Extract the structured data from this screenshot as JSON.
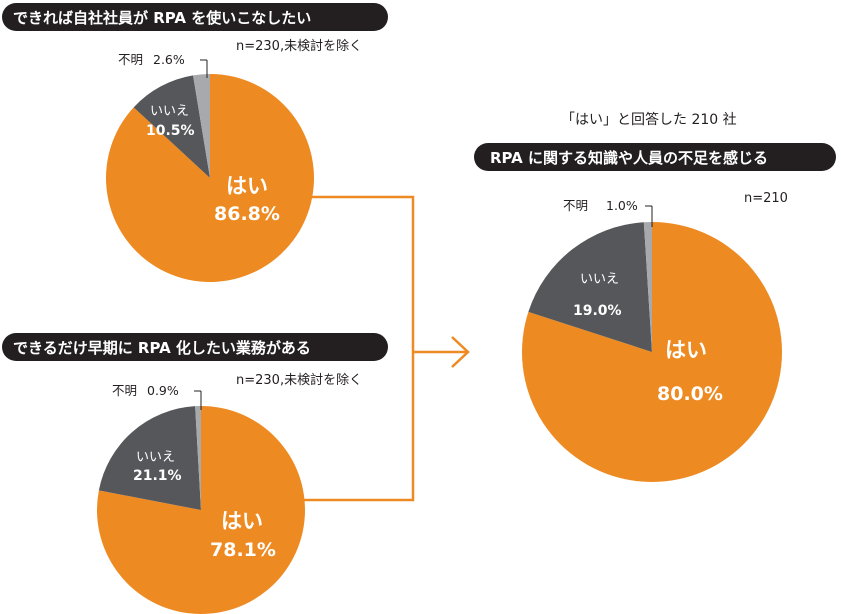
{
  "colors": {
    "yes": "#ee8a22",
    "no": "#55575b",
    "unknown": "#a7a9ac",
    "pill": "#231f20",
    "arrow": "#ee8a22"
  },
  "chart_data": [
    {
      "type": "pie",
      "title": "できれば自社社員が RPA を使いこなしたい",
      "note": "n=230,未検討を除く",
      "slices": [
        {
          "label": "はい",
          "value": 86.8,
          "display": "86.8%"
        },
        {
          "label": "いいえ",
          "value": 10.5,
          "display": "10.5%"
        },
        {
          "label": "不明",
          "value": 2.6,
          "display": "2.6%"
        }
      ]
    },
    {
      "type": "pie",
      "title": "できるだけ早期に RPA 化したい業務がある",
      "note": "n=230,未検討を除く",
      "slices": [
        {
          "label": "はい",
          "value": 78.1,
          "display": "78.1%"
        },
        {
          "label": "いいえ",
          "value": 21.1,
          "display": "21.1%"
        },
        {
          "label": "不明",
          "value": 0.9,
          "display": "0.9%"
        }
      ]
    },
    {
      "type": "pie",
      "subtitle": "「はい」と回答した 210 社",
      "title": "RPA に関する知識や人員の不足を感じる",
      "note": "n=210",
      "slices": [
        {
          "label": "はい",
          "value": 80.0,
          "display": "80.0%"
        },
        {
          "label": "いいえ",
          "value": 19.0,
          "display": "19.0%"
        },
        {
          "label": "不明",
          "value": 1.0,
          "display": "1.0%"
        }
      ]
    }
  ]
}
